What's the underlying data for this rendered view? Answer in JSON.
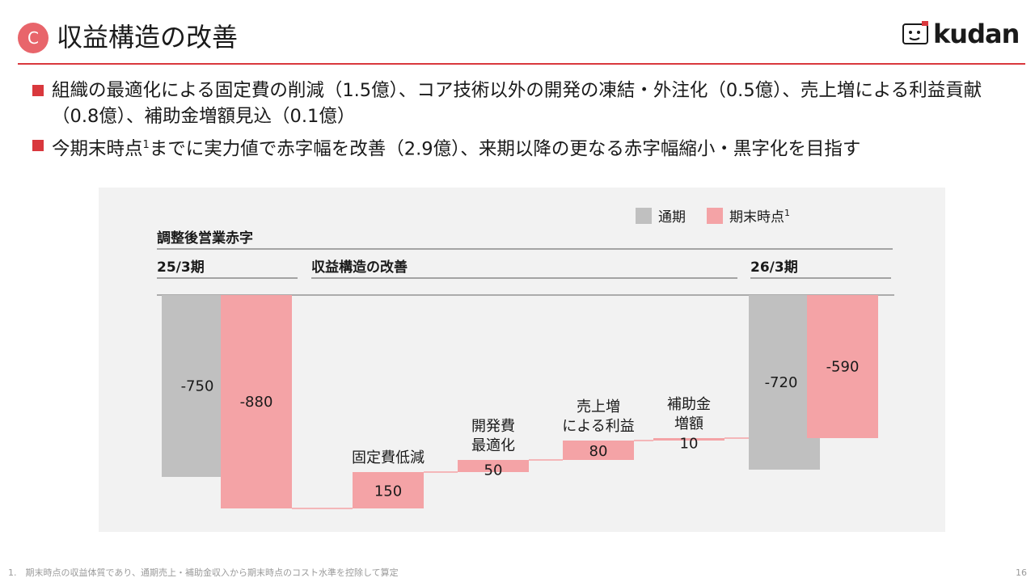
{
  "header": {
    "badge": "C",
    "title": "収益構造の改善",
    "logo_text": "kudan"
  },
  "bullets": [
    {
      "text": "組織の最適化による固定費の削減（1.5億）、コア技術以外の開発の凍結・外注化（0.5億）、売上増による利益貢献（0.8億）、補助金増額見込（0.1億）",
      "sup": ""
    },
    {
      "text_before": "今期末時点",
      "sup": "1",
      "text_after": "までに実力値で赤字幅を改善（2.9億）、来期以降の更なる赤字幅縮小・黒字化を目指す"
    }
  ],
  "chart_data": {
    "type": "bar",
    "subtype": "waterfall",
    "title": "調整後営業赤字",
    "legend": {
      "placement": "top-right",
      "items": [
        {
          "name": "通期",
          "color": "#c0c0c0"
        },
        {
          "name": "期末時点",
          "sup": "1",
          "color": "#f4a3a6"
        }
      ]
    },
    "group_headers": [
      {
        "id": "start",
        "label": "25/3期"
      },
      {
        "id": "mid",
        "label": "収益構造の改善"
      },
      {
        "id": "end",
        "label": "26/3期"
      }
    ],
    "start_bars": [
      {
        "series": "通期",
        "value": -750,
        "label": "-750"
      },
      {
        "series": "期末時点",
        "value": -880,
        "label": "-880"
      }
    ],
    "steps": [
      {
        "category": "固定費低減",
        "value": 150,
        "label": "150"
      },
      {
        "category": "開発費\n最適化",
        "value": 50,
        "label": "50"
      },
      {
        "category": "売上増\nによる利益",
        "value": 80,
        "label": "80"
      },
      {
        "category": "補助金\n増額",
        "value": 10,
        "label": "10"
      }
    ],
    "end_bars": [
      {
        "series": "通期",
        "value": -720,
        "label": "-720"
      },
      {
        "series": "期末時点",
        "value": -590,
        "label": "-590"
      }
    ],
    "ylim": [
      -900,
      0
    ],
    "colors": {
      "gray": "#c0c0c0",
      "pink": "#f4a3a6",
      "connector": "#f4a3a6"
    }
  },
  "footnote": "1.　期末時点の収益体質であり、通期売上・補助金収入から期末時点のコスト水準を控除して算定",
  "page_number": "16"
}
